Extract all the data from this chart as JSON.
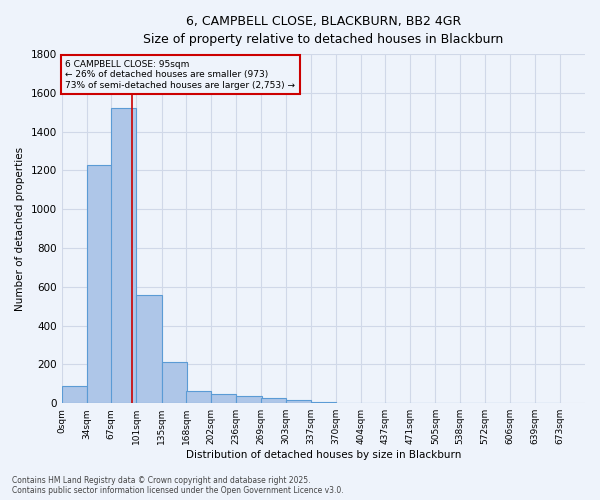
{
  "title_line1": "6, CAMPBELL CLOSE, BLACKBURN, BB2 4GR",
  "title_line2": "Size of property relative to detached houses in Blackburn",
  "xlabel": "Distribution of detached houses by size in Blackburn",
  "ylabel": "Number of detached properties",
  "footnote": "Contains HM Land Registry data © Crown copyright and database right 2025.\nContains public sector information licensed under the Open Government Licence v3.0.",
  "bin_labels": [
    "0sqm",
    "34sqm",
    "67sqm",
    "101sqm",
    "135sqm",
    "168sqm",
    "202sqm",
    "236sqm",
    "269sqm",
    "303sqm",
    "337sqm",
    "370sqm",
    "404sqm",
    "437sqm",
    "471sqm",
    "505sqm",
    "538sqm",
    "572sqm",
    "606sqm",
    "639sqm",
    "673sqm"
  ],
  "bin_edges": [
    0,
    34,
    67,
    101,
    135,
    168,
    202,
    236,
    269,
    303,
    337,
    370,
    404,
    437,
    471,
    505,
    538,
    572,
    606,
    639,
    673
  ],
  "bar_heights": [
    90,
    1230,
    1520,
    560,
    210,
    65,
    45,
    35,
    28,
    15,
    8,
    0,
    0,
    0,
    0,
    0,
    0,
    0,
    0,
    0
  ],
  "bar_color": "#AEC6E8",
  "bar_edge_color": "#5B9BD5",
  "grid_color": "#D0D8E8",
  "background_color": "#EEF3FB",
  "property_line_x": 95,
  "annotation_text": "6 CAMPBELL CLOSE: 95sqm\n← 26% of detached houses are smaller (973)\n73% of semi-detached houses are larger (2,753) →",
  "annotation_box_color": "#CC0000",
  "ylim": [
    0,
    1800
  ],
  "yticks": [
    0,
    200,
    400,
    600,
    800,
    1000,
    1200,
    1400,
    1600,
    1800
  ]
}
